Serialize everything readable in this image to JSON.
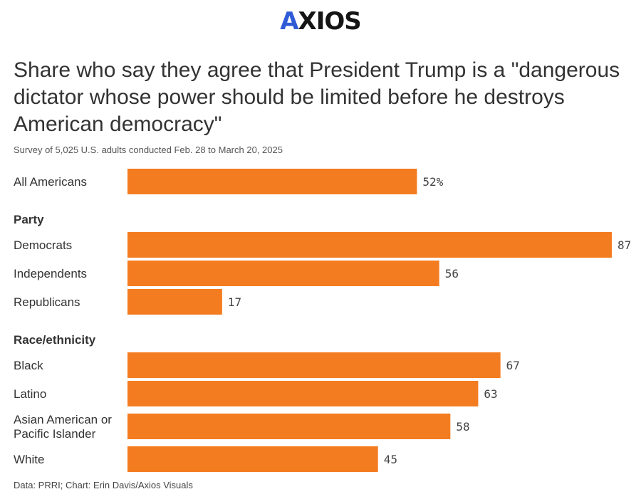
{
  "brand": {
    "logo_text": "AXIOS",
    "accent": "#2f5bd6"
  },
  "chart_data": {
    "type": "bar",
    "orientation": "horizontal",
    "title": "Share who say they agree that President Trump is a \"dangerous dictator whose power should be limited before he destroys American democracy\"",
    "subtitle": "Survey of 5,025 U.S. adults conducted Feb. 28 to March 20, 2025",
    "source": "Data: PRRI; Chart: Erin Davis/Axios Visuals",
    "bar_color": "#f47c20",
    "xlim": [
      0,
      87
    ],
    "grid": false,
    "groups": [
      {
        "heading": "",
        "items": [
          {
            "label": [
              "All Americans"
            ],
            "value": 52,
            "value_label": "52%"
          }
        ]
      },
      {
        "heading": "Party",
        "items": [
          {
            "label": [
              "Democrats"
            ],
            "value": 87,
            "value_label": "87"
          },
          {
            "label": [
              "Independents"
            ],
            "value": 56,
            "value_label": "56"
          },
          {
            "label": [
              "Republicans"
            ],
            "value": 17,
            "value_label": "17"
          }
        ]
      },
      {
        "heading": "Race/ethnicity",
        "items": [
          {
            "label": [
              "Black"
            ],
            "value": 67,
            "value_label": "67"
          },
          {
            "label": [
              "Latino"
            ],
            "value": 63,
            "value_label": "63"
          },
          {
            "label": [
              "Asian American or",
              "Pacific Islander"
            ],
            "value": 58,
            "value_label": "58"
          },
          {
            "label": [
              "White"
            ],
            "value": 45,
            "value_label": "45"
          }
        ]
      }
    ]
  }
}
